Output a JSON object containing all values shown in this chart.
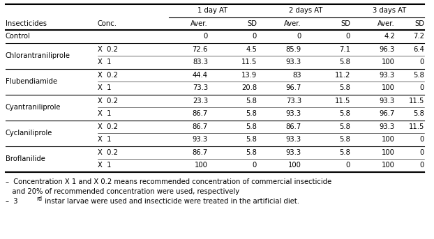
{
  "col_headers_row1": [
    "",
    "",
    "1 day AT",
    "",
    "2 days AT",
    "",
    "3 days AT",
    ""
  ],
  "col_headers_row2": [
    "Insecticides",
    "Conc.",
    "Aver.",
    "SD",
    "Aver.",
    "SD",
    "Aver.",
    "SD"
  ],
  "rows": [
    {
      "insecticide": "Control",
      "conc": "",
      "vals": [
        "0",
        "0",
        "0",
        "0",
        "4.2",
        "7.2"
      ]
    },
    {
      "insecticide": "Chlorantraniliprole",
      "conc": "X  0.2",
      "vals": [
        "72.6",
        "4.5",
        "85.9",
        "7.1",
        "96.3",
        "6.4"
      ]
    },
    {
      "insecticide": "",
      "conc": "X  1",
      "vals": [
        "83.3",
        "11.5",
        "93.3",
        "5.8",
        "100",
        "0"
      ]
    },
    {
      "insecticide": "Flubendiamide",
      "conc": "X  0.2",
      "vals": [
        "44.4",
        "13.9",
        "83",
        "11.2",
        "93.3",
        "5.8"
      ]
    },
    {
      "insecticide": "",
      "conc": "X  1",
      "vals": [
        "73.3",
        "20.8",
        "96.7",
        "5.8",
        "100",
        "0"
      ]
    },
    {
      "insecticide": "Cyantraniliprole",
      "conc": "X  0.2",
      "vals": [
        "23.3",
        "5.8",
        "73.3",
        "11.5",
        "93.3",
        "11.5"
      ]
    },
    {
      "insecticide": "",
      "conc": "X  1",
      "vals": [
        "86.7",
        "5.8",
        "93.3",
        "5.8",
        "96.7",
        "5.8"
      ]
    },
    {
      "insecticide": "Cyclaniliprole",
      "conc": "X  0.2",
      "vals": [
        "86.7",
        "5.8",
        "86.7",
        "5.8",
        "93.3",
        "11.5"
      ]
    },
    {
      "insecticide": "",
      "conc": "X  1",
      "vals": [
        "93.3",
        "5.8",
        "93.3",
        "5.8",
        "100",
        "0"
      ]
    },
    {
      "insecticide": "Broflanilide",
      "conc": "X  0.2",
      "vals": [
        "86.7",
        "5.8",
        "93.3",
        "5.8",
        "100",
        "0"
      ]
    },
    {
      "insecticide": "",
      "conc": "X  1",
      "vals": [
        "100",
        "0",
        "100",
        "0",
        "100",
        "0"
      ]
    }
  ],
  "footnote1": "–  Concentration X 1 and X 0.2 means recommended concentration of commercial insecticide",
  "footnote2": "   and 20% of recommended concentration were used, respectively",
  "footnote3_pre": "–  3",
  "footnote3_sup": "rd",
  "footnote3_post": " instar larvae were used and insecticide were treated in the artificial diet.",
  "bg_color": "#ffffff",
  "text_color": "#000000",
  "font_size": 7.2,
  "font_family": "DejaVu Sans"
}
